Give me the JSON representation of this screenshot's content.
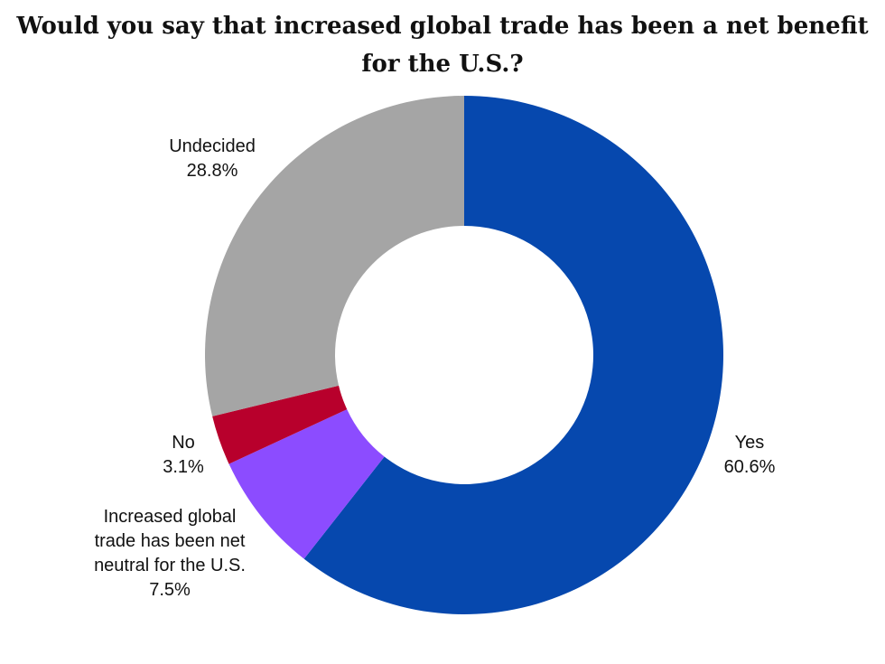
{
  "chart_data": {
    "type": "pie",
    "variant": "donut",
    "title": "Would you say that increased global trade has been a net benefit for the U.S.?",
    "title_lines": [
      "Would you say that increased global trade has been a net benefit",
      "for the U.S.?"
    ],
    "slices": [
      {
        "label": "Yes",
        "label_lines": [
          "Yes"
        ],
        "value": 60.6,
        "value_label": "60.6%",
        "color": "#0648ae"
      },
      {
        "label": "Increased global trade has been net neutral for the U.S.",
        "label_lines": [
          "Increased global",
          "trade has been net",
          "neutral for the U.S."
        ],
        "value": 7.5,
        "value_label": "7.5%",
        "color": "#8c4cff"
      },
      {
        "label": "No",
        "label_lines": [
          "No"
        ],
        "value": 3.1,
        "value_label": "3.1%",
        "color": "#b8002c"
      },
      {
        "label": "Undecided",
        "label_lines": [
          "Undecided"
        ],
        "value": 28.8,
        "value_label": "28.8%",
        "color": "#a5a5a5"
      }
    ],
    "start_angle": "12 o'clock",
    "direction": "clockwise",
    "legend": "none"
  }
}
